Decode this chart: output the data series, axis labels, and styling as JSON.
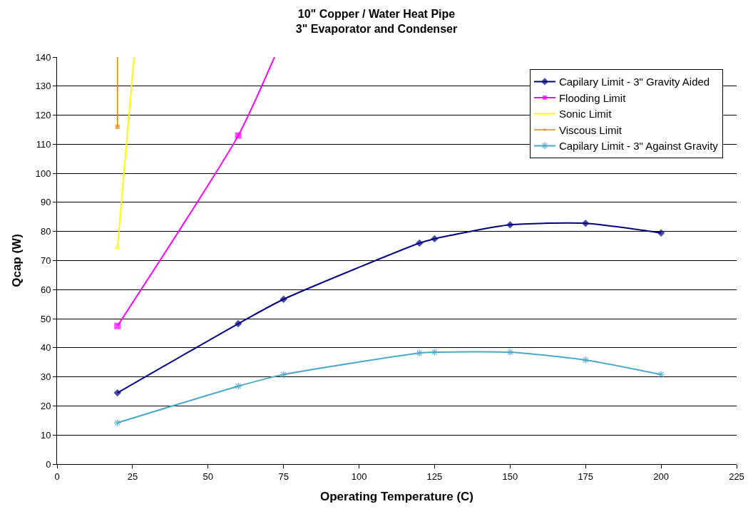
{
  "chart_data": {
    "type": "line",
    "title": "10\" Copper / Water Heat Pipe\n3\" Evaporator and Condenser",
    "xlabel": "Operating Temperature (C)",
    "ylabel": "Qcap (W)",
    "xlim": [
      0,
      225
    ],
    "xticks": [
      0,
      25,
      50,
      75,
      100,
      125,
      150,
      175,
      200,
      225
    ],
    "ylim": [
      0,
      140
    ],
    "yticks": [
      0,
      10,
      20,
      30,
      40,
      50,
      60,
      70,
      80,
      90,
      100,
      110,
      120,
      130,
      140
    ],
    "grid": "y",
    "legend": "top right",
    "series": [
      {
        "name": "Capilary Limit - 3\" Gravity Aided",
        "color": "#000080",
        "marker": "diamond",
        "x": [
          20,
          60,
          75,
          120,
          125,
          150,
          175,
          200
        ],
        "values": [
          24.5,
          48.3,
          56.7,
          76,
          77.5,
          82.3,
          82.8,
          79.5
        ]
      },
      {
        "name": "Flooding Limit",
        "color": "#ff00ff",
        "marker": "square",
        "x": [
          20,
          60,
          72
        ],
        "values": [
          47.5,
          113,
          140
        ]
      },
      {
        "name": "Sonic Limit",
        "color": "#ffff00",
        "marker": "triangle",
        "x": [
          20,
          25.5
        ],
        "values": [
          74.5,
          140
        ]
      },
      {
        "name": "Viscous Limit",
        "color": "#ff8000",
        "marker": "square",
        "x": [
          20,
          20
        ],
        "values": [
          116,
          140
        ]
      },
      {
        "name": "Capilary Limit - 3\" Against Gravity",
        "color": "#4aa8c8",
        "marker": "cross",
        "x": [
          20,
          60,
          75,
          120,
          125,
          150,
          175,
          200
        ],
        "values": [
          14.2,
          26.8,
          30.8,
          38.2,
          38.5,
          38.5,
          35.8,
          30.8
        ]
      }
    ]
  }
}
